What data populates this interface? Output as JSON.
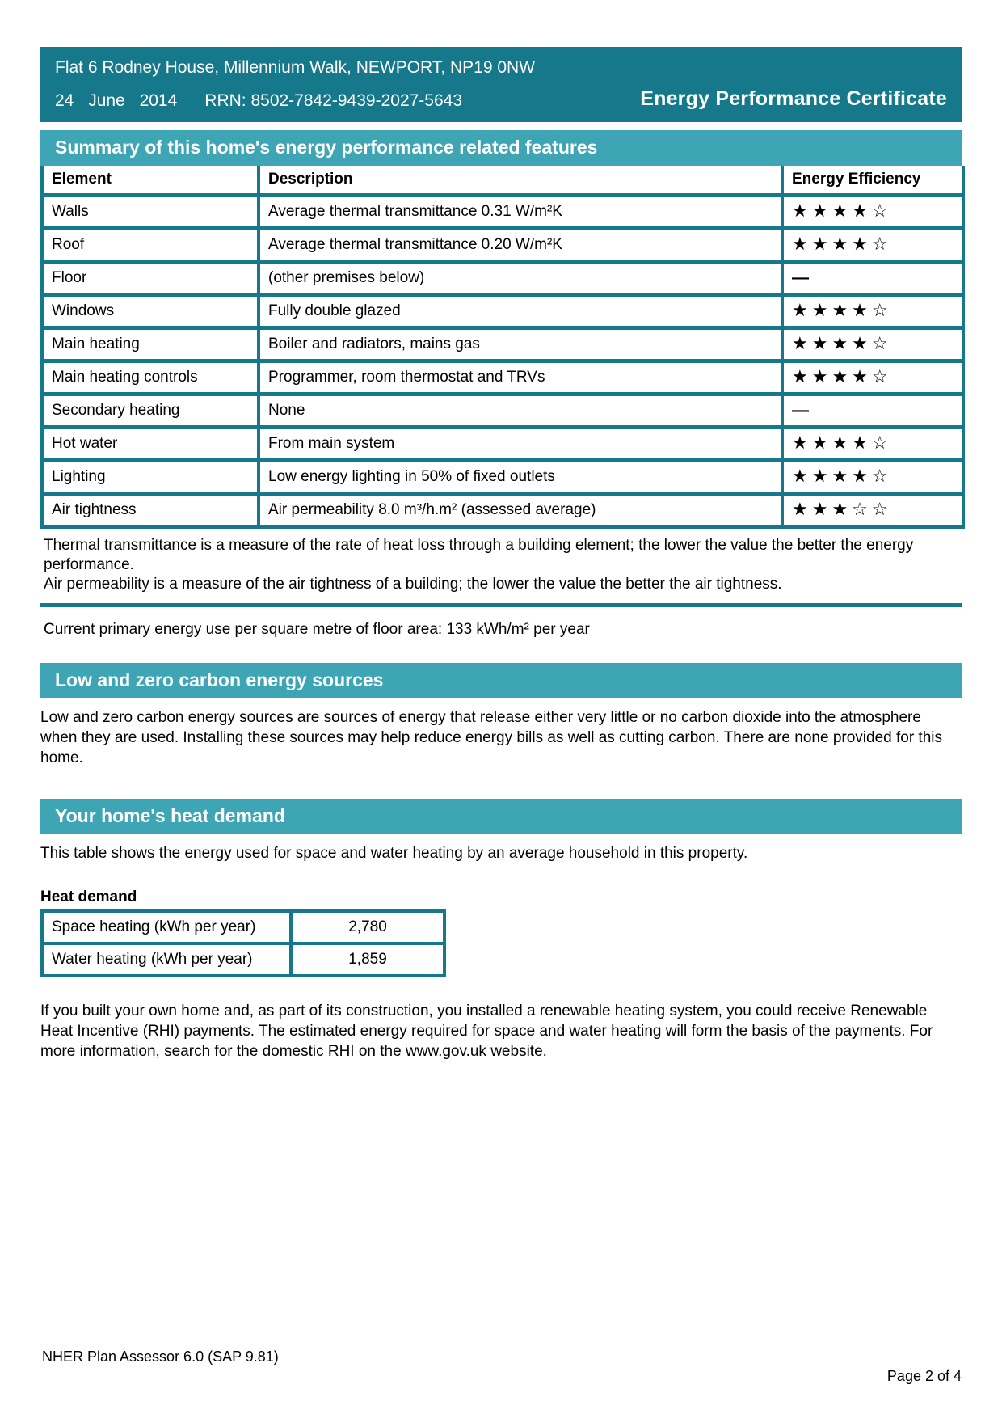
{
  "colors": {
    "teal_dark": "#15798B",
    "teal_light": "#3EA5B4"
  },
  "header": {
    "address": "Flat 6 Rodney House, Millennium Walk, NEWPORT, NP19 0NW",
    "date": "24 June 2014",
    "rrn": "RRN: 8502-7842-9439-2027-5643",
    "title": "Energy Performance Certificate"
  },
  "summary": {
    "title": "Summary of this home's energy performance related features",
    "columns": [
      "Element",
      "Description",
      "Energy Efficiency"
    ],
    "max_stars": 5,
    "rows": [
      {
        "element": "Walls",
        "description": "Average thermal transmittance 0.31 W/m²K",
        "stars": 4
      },
      {
        "element": "Roof",
        "description": "Average thermal transmittance 0.20 W/m²K",
        "stars": 4
      },
      {
        "element": "Floor",
        "description": "(other premises below)",
        "stars": null
      },
      {
        "element": "Windows",
        "description": "Fully double glazed",
        "stars": 4
      },
      {
        "element": "Main heating",
        "description": "Boiler and radiators, mains gas",
        "stars": 4
      },
      {
        "element": "Main heating controls",
        "description": "Programmer, room thermostat and TRVs",
        "stars": 4
      },
      {
        "element": "Secondary heating",
        "description": "None",
        "stars": null
      },
      {
        "element": "Hot water",
        "description": "From main system",
        "stars": 4
      },
      {
        "element": "Lighting",
        "description": "Low energy lighting in 50% of fixed outlets",
        "stars": 4
      },
      {
        "element": "Air tightness",
        "description": "Air permeability 8.0 m³/h.m² (assessed average)",
        "stars": 3
      }
    ],
    "notes": [
      "Thermal transmittance is a measure of the rate of heat loss through a building element; the lower the value the better the energy performance.",
      "Air permeability is a measure of the air tightness of a building; the lower the value the better the air tightness."
    ]
  },
  "primary_energy": "Current primary energy use per square metre of floor area: 133 kWh/m² per year",
  "low_zero_carbon": {
    "title": "Low and zero carbon energy sources",
    "body": "Low and zero carbon energy sources are sources of energy that release either very little or no carbon dioxide into the atmosphere when they are used. Installing these sources may help reduce energy bills as well as cutting carbon. There are none provided for this home."
  },
  "heat_demand": {
    "title": "Your home's heat demand",
    "intro": "This table shows the energy used for space and water heating by an average household in this property.",
    "table_title": "Heat demand",
    "rows": [
      {
        "label": "Space heating (kWh per year)",
        "value": "2,780"
      },
      {
        "label": "Water heating (kWh per year)",
        "value": "1,859"
      }
    ],
    "rhi": "If you built your own home and, as part of its construction, you installed a renewable heating system, you could receive Renewable Heat Incentive (RHI) payments. The estimated energy required for space and water heating will form the basis of the payments. For more information, search for the domestic RHI on the www.gov.uk website."
  },
  "footer": {
    "left": "NHER Plan Assessor 6.0 (SAP 9.81)",
    "right": "Page 2 of 4"
  }
}
